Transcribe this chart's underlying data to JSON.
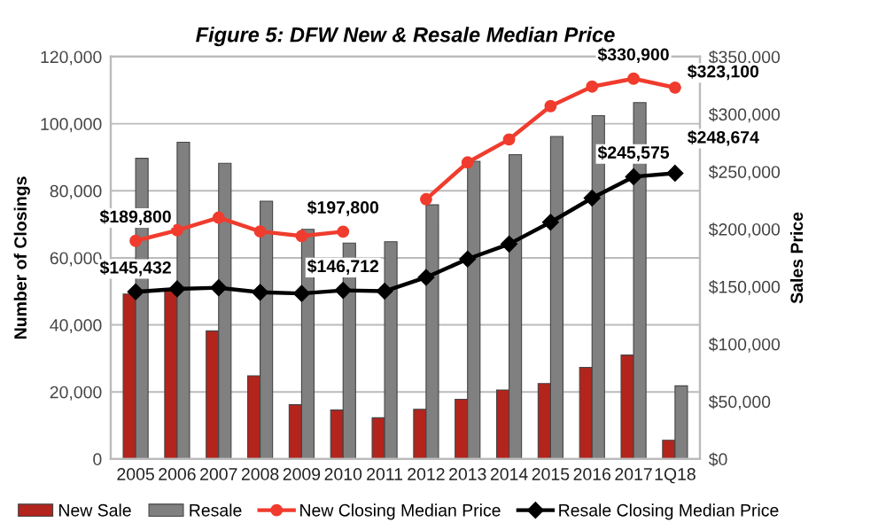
{
  "chart_data": {
    "type": "bar",
    "title": "Figure 5: DFW New & Resale Median Price",
    "ylabel": "Number of Closings",
    "y2label": "Sales Price",
    "categories": [
      "2005",
      "2006",
      "2007",
      "2008",
      "2009",
      "2010",
      "2011",
      "2012",
      "2013",
      "2014",
      "2015",
      "2016",
      "2017",
      "1Q18"
    ],
    "series": [
      {
        "name": "New Sale",
        "color": "#b3241c",
        "values": [
          49200,
          50100,
          38200,
          24800,
          16200,
          14600,
          12300,
          14800,
          17800,
          20600,
          22500,
          27300,
          31000,
          5600
        ]
      },
      {
        "name": "Resale",
        "color": "#808080",
        "values": [
          89700,
          94500,
          88200,
          76900,
          68500,
          64400,
          64800,
          75800,
          88800,
          90800,
          96200,
          102400,
          106300,
          21800
        ]
      },
      {
        "name": "New Closing Median Price",
        "type": "line",
        "axis": "y2",
        "color": "#f03c2e",
        "marker": "circle",
        "values": [
          189800,
          199000,
          210000,
          198000,
          194000,
          197800,
          null,
          226000,
          258000,
          278000,
          307000,
          324000,
          330900,
          323100
        ],
        "value_labels": [
          "$189,800",
          null,
          null,
          null,
          null,
          "$197,800",
          null,
          null,
          null,
          null,
          null,
          null,
          "$330,900",
          "$323,100"
        ]
      },
      {
        "name": "Resale Closing Median Price",
        "type": "line",
        "axis": "y2",
        "color": "#000000",
        "marker": "diamond",
        "values": [
          145432,
          148000,
          149000,
          145000,
          144000,
          146712,
          146000,
          158000,
          174000,
          187000,
          206000,
          227000,
          245575,
          248674
        ],
        "value_labels": [
          "$145,432",
          null,
          null,
          null,
          null,
          "$146,712",
          null,
          null,
          null,
          null,
          null,
          null,
          "$245,575",
          "$248,674"
        ]
      }
    ],
    "ylim": [
      0,
      120000
    ],
    "yticks": [
      {
        "value": 0,
        "label": "0"
      },
      {
        "value": 20000,
        "label": "20,000"
      },
      {
        "value": 40000,
        "label": "40,000"
      },
      {
        "value": 60000,
        "label": "60,000"
      },
      {
        "value": 80000,
        "label": "80,000"
      },
      {
        "value": 100000,
        "label": "100,000"
      },
      {
        "value": 120000,
        "label": "120,000"
      }
    ],
    "y2lim": [
      0,
      350000
    ],
    "y2ticks": [
      {
        "value": 0,
        "label": "$0"
      },
      {
        "value": 50000,
        "label": "$50,000"
      },
      {
        "value": 100000,
        "label": "$100,000"
      },
      {
        "value": 150000,
        "label": "$150,000"
      },
      {
        "value": 200000,
        "label": "$200,000"
      },
      {
        "value": 250000,
        "label": "$250,000"
      },
      {
        "value": 300000,
        "label": "$300,000"
      },
      {
        "value": 350000,
        "label": "$350,000"
      }
    ],
    "grid": "y",
    "legend": "bottom"
  }
}
